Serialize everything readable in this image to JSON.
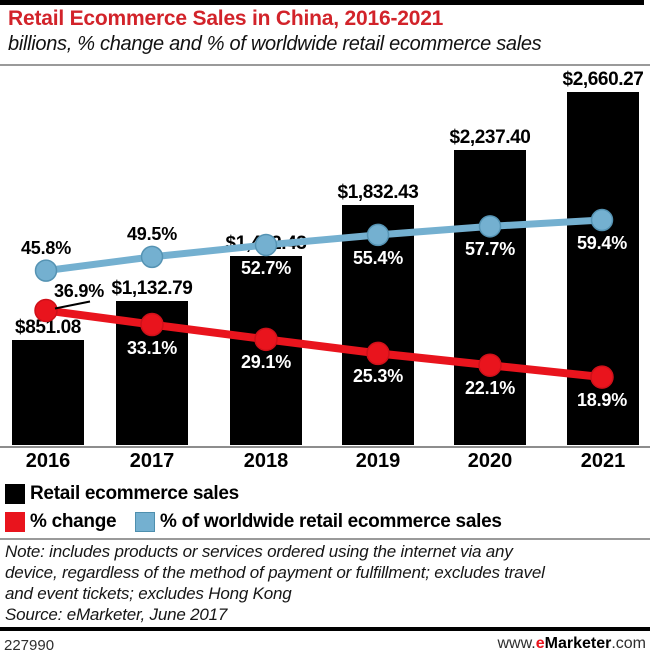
{
  "chart_data": {
    "type": "combo-bar-line",
    "title": "Retail Ecommerce Sales in China, 2016-2021",
    "subtitle": "billions, % change and % of worldwide retail ecommerce sales",
    "categories": [
      "2016",
      "2017",
      "2018",
      "2019",
      "2020",
      "2021"
    ],
    "series": [
      {
        "name": "Retail ecommerce sales",
        "type": "bar",
        "unit": "US$ billions",
        "color": "#000000",
        "values": [
          851.08,
          1132.79,
          1462.43,
          1832.43,
          2237.4,
          2660.27
        ],
        "labels": [
          "$851.08",
          "$1,132.79",
          "$1,462.43",
          "$1,832.43",
          "$2,237.40",
          "$2,660.27"
        ]
      },
      {
        "name": "% change",
        "type": "line",
        "color": "#e9141d",
        "values": [
          36.9,
          33.1,
          29.1,
          25.3,
          22.1,
          18.9
        ],
        "labels": [
          "36.9%",
          "33.1%",
          "29.1%",
          "25.3%",
          "22.1%",
          "18.9%"
        ],
        "label_placement": [
          "above-callout",
          "below",
          "below",
          "below",
          "below",
          "below"
        ]
      },
      {
        "name": "% of worldwide retail ecommerce sales",
        "type": "line",
        "color": "#74b0d0",
        "values": [
          45.8,
          49.5,
          52.7,
          55.4,
          57.7,
          59.4
        ],
        "labels": [
          "45.8%",
          "49.5%",
          "52.7%",
          "55.4%",
          "57.7%",
          "59.4%"
        ],
        "label_placement": [
          "above",
          "above",
          "below",
          "below",
          "below",
          "below"
        ]
      }
    ],
    "legend_position": "bottom",
    "grid": false,
    "y_axes_visible": false
  },
  "note": {
    "lines": [
      "Note: includes products or services ordered using the internet via any",
      "device, regardless of the method of payment or fulfillment; excludes travel",
      "and event tickets; excludes Hong Kong"
    ],
    "source": "Source: eMarketer, June 2017"
  },
  "footer": {
    "chart_id": "227990",
    "site": {
      "www": "www.",
      "e": "e",
      "brand": "Marketer",
      "com": ".com"
    }
  },
  "colors": {
    "title_red": "#d2232a",
    "line_red": "#e9141d",
    "line_blue": "#74b0d0",
    "blue_edge": "#5593b3",
    "bar_black": "#000000",
    "rule_gray": "#999999"
  }
}
